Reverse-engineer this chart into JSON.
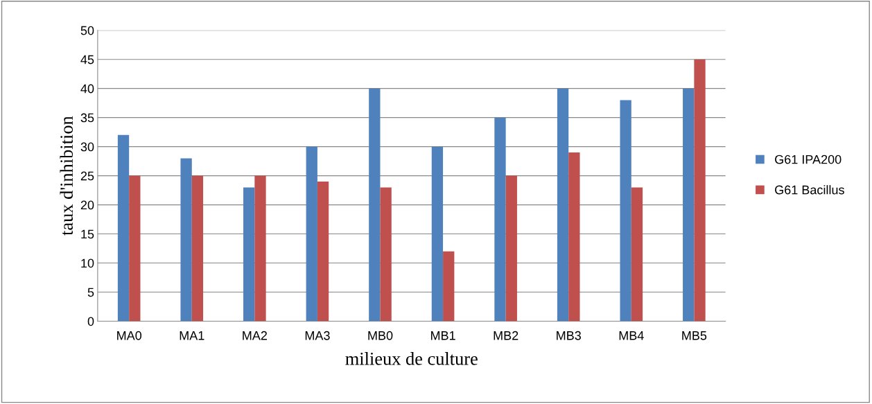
{
  "chart_data": {
    "type": "bar",
    "xlabel": "milieux de culture",
    "ylabel": "taux d'inhibition",
    "categories": [
      "MA0",
      "MA1",
      "MA2",
      "MA3",
      "MB0",
      "MB1",
      "MB2",
      "MB3",
      "MB4",
      "MB5"
    ],
    "series": [
      {
        "name": "G61 IPA200",
        "color": "#4f81bd",
        "values": [
          32,
          28,
          23,
          30,
          40,
          30,
          35,
          40,
          38,
          40
        ]
      },
      {
        "name": "G61 Bacillus",
        "color": "#c0504d",
        "values": [
          25,
          25,
          25,
          24,
          23,
          12,
          25,
          29,
          23,
          45
        ]
      }
    ],
    "ylim": [
      0,
      50
    ],
    "yticks": [
      0,
      5,
      10,
      15,
      20,
      25,
      30,
      35,
      40,
      45,
      50
    ],
    "grid": "y",
    "legend": "right"
  }
}
